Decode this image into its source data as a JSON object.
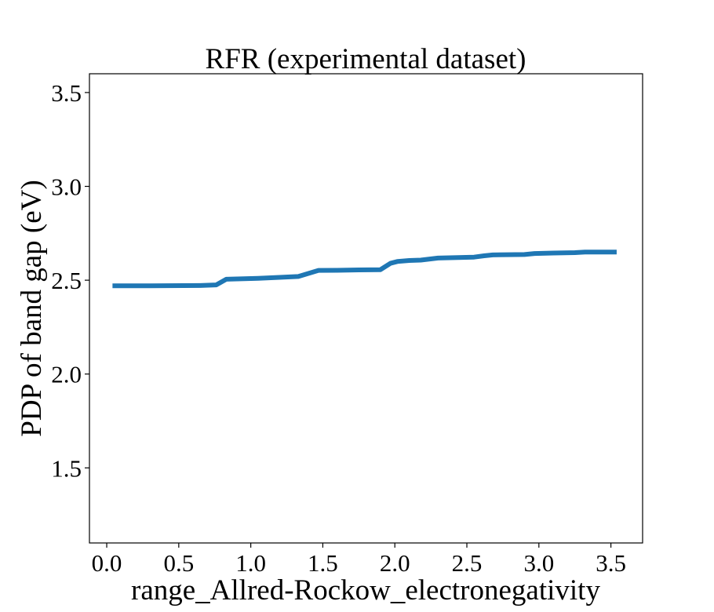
{
  "chart_data": {
    "type": "line",
    "title": "RFR (experimental dataset)",
    "xlabel": "range_Allred-Rockow_electronegativity",
    "ylabel": "PDP of band gap (eV)",
    "xlim": [
      -0.12,
      3.72
    ],
    "ylim": [
      1.1,
      3.6
    ],
    "xticks": [
      0.0,
      0.5,
      1.0,
      1.5,
      2.0,
      2.5,
      3.0,
      3.5
    ],
    "xtick_labels": [
      "0.0",
      "0.5",
      "1.0",
      "1.5",
      "2.0",
      "2.5",
      "3.0",
      "3.5"
    ],
    "yticks": [
      1.5,
      2.0,
      2.5,
      3.0,
      3.5
    ],
    "ytick_labels": [
      "1.5",
      "2.0",
      "2.5",
      "3.0",
      "3.5"
    ],
    "grid": false,
    "legend": "none",
    "series": [
      {
        "color": "#1f77b4",
        "x": [
          0.04,
          0.3,
          0.65,
          0.76,
          0.83,
          1.05,
          1.2,
          1.33,
          1.47,
          1.6,
          1.75,
          1.9,
          1.97,
          2.02,
          2.1,
          2.18,
          2.3,
          2.55,
          2.62,
          2.68,
          2.9,
          2.97,
          3.1,
          3.25,
          3.32,
          3.54
        ],
        "y": [
          2.47,
          2.47,
          2.472,
          2.475,
          2.505,
          2.51,
          2.515,
          2.52,
          2.552,
          2.553,
          2.555,
          2.556,
          2.59,
          2.6,
          2.605,
          2.607,
          2.618,
          2.623,
          2.63,
          2.635,
          2.637,
          2.642,
          2.645,
          2.647,
          2.65,
          2.65
        ]
      }
    ]
  }
}
